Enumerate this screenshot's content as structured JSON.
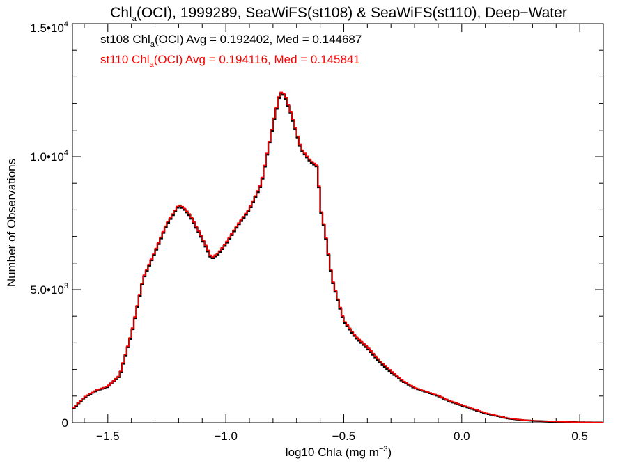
{
  "chart_data": {
    "type": "line",
    "step": true,
    "title": {
      "prefix": "Chl",
      "sub": "a",
      "rest": "(OCI), 1999289, SeaWiFS(st108) & SeaWiFS(st110), Deep−Water"
    },
    "xlabel": {
      "main": "log10 Chla (mg m",
      "sup": "−3",
      "close": ")"
    },
    "ylabel": "Number of Observations",
    "xlim": [
      -1.65,
      0.6
    ],
    "ylim": [
      0,
      15000
    ],
    "x_ticks": [
      {
        "value": -1.5,
        "label": "−1.5"
      },
      {
        "value": -1.0,
        "label": "−1.0"
      },
      {
        "value": -0.5,
        "label": "−0.5"
      },
      {
        "value": 0.0,
        "label": "0.0"
      },
      {
        "value": 0.5,
        "label": "0.5"
      }
    ],
    "y_ticks": [
      {
        "value": 0,
        "base": "0",
        "exp": ""
      },
      {
        "value": 5000,
        "base": "5.0•10",
        "exp": "3"
      },
      {
        "value": 10000,
        "base": "1.0•10",
        "exp": "4"
      },
      {
        "value": 15000,
        "base": "1.5•10",
        "exp": "4"
      }
    ],
    "annotations": [
      {
        "id": "st108",
        "color": "#000000",
        "pre": "st108 Chl",
        "sub": "a",
        "post": "(OCI) Avg = 0.192402, Med = 0.144687"
      },
      {
        "id": "st110",
        "color": "#ff0000",
        "pre": "st110 Chl",
        "sub": "a",
        "post": "(OCI) Avg = 0.194116, Med = 0.145841"
      }
    ],
    "grid": false,
    "series": [
      {
        "id": "st108",
        "color": "#000000",
        "x": [
          -1.65,
          -1.6,
          -1.55,
          -1.5,
          -1.45,
          -1.4,
          -1.35,
          -1.3,
          -1.25,
          -1.2,
          -1.18,
          -1.15,
          -1.1,
          -1.06,
          -1.03,
          -1.0,
          -0.95,
          -0.9,
          -0.85,
          -0.8,
          -0.77,
          -0.75,
          -0.72,
          -0.68,
          -0.64,
          -0.61,
          -0.6,
          -0.58,
          -0.55,
          -0.5,
          -0.45,
          -0.4,
          -0.35,
          -0.3,
          -0.25,
          -0.2,
          -0.15,
          -0.1,
          -0.05,
          0.0,
          0.05,
          0.1,
          0.15,
          0.2,
          0.25,
          0.3,
          0.4,
          0.5,
          0.6
        ],
        "y": [
          500,
          950,
          1200,
          1350,
          1750,
          3300,
          5400,
          6400,
          7450,
          8150,
          8050,
          7750,
          6900,
          6150,
          6350,
          6700,
          7400,
          8000,
          8950,
          11200,
          12400,
          12300,
          11500,
          10250,
          9800,
          9600,
          8100,
          7200,
          5400,
          3800,
          3200,
          2800,
          2300,
          1900,
          1550,
          1300,
          1150,
          1000,
          800,
          650,
          500,
          350,
          250,
          150,
          100,
          70,
          35,
          15,
          5
        ]
      },
      {
        "id": "st110",
        "color": "#ff0000",
        "x": [
          -1.65,
          -1.6,
          -1.55,
          -1.5,
          -1.45,
          -1.4,
          -1.35,
          -1.3,
          -1.25,
          -1.2,
          -1.18,
          -1.15,
          -1.1,
          -1.06,
          -1.03,
          -1.0,
          -0.95,
          -0.9,
          -0.85,
          -0.8,
          -0.77,
          -0.75,
          -0.72,
          -0.68,
          -0.64,
          -0.61,
          -0.6,
          -0.58,
          -0.55,
          -0.5,
          -0.45,
          -0.4,
          -0.35,
          -0.3,
          -0.25,
          -0.2,
          -0.15,
          -0.1,
          -0.05,
          0.0,
          0.05,
          0.1,
          0.15,
          0.2,
          0.25,
          0.3,
          0.4,
          0.5,
          0.6
        ],
        "y": [
          520,
          960,
          1220,
          1370,
          1780,
          3350,
          5450,
          6450,
          7500,
          8200,
          8100,
          7800,
          6950,
          6200,
          6400,
          6750,
          7450,
          8050,
          9000,
          11250,
          12450,
          12350,
          11550,
          10300,
          9850,
          9650,
          8150,
          7250,
          5450,
          3850,
          3250,
          2850,
          2350,
          1950,
          1580,
          1320,
          1170,
          1020,
          820,
          670,
          520,
          370,
          260,
          160,
          110,
          75,
          38,
          16,
          6
        ]
      }
    ]
  }
}
